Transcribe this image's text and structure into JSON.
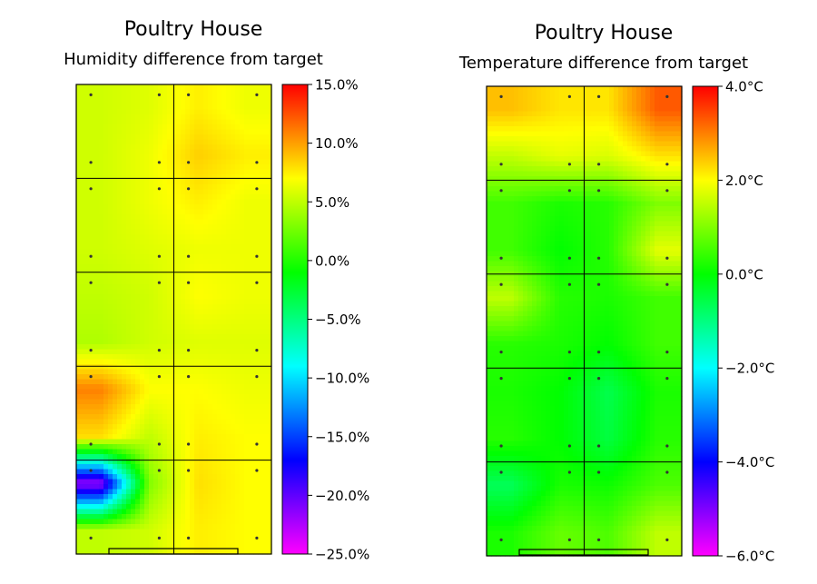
{
  "chart_data": [
    {
      "type": "heatmap",
      "title": "Poultry House",
      "subtitle": "Humidity difference from target",
      "colorbar": {
        "min": -25,
        "max": 15,
        "ticks": [
          15,
          10,
          5,
          0,
          -5,
          -10,
          -15,
          -20,
          -25
        ],
        "tick_labels": [
          "15.0%",
          "10.0%",
          "5.0%",
          "0.0%",
          "−5.0%",
          "−10.0%",
          "−15.0%",
          "−20.0%",
          "−25.0%"
        ]
      },
      "grid": {
        "cols": 4,
        "rows": 10
      },
      "values": [
        [
          5.5,
          6,
          7.5,
          6.5
        ],
        [
          5.5,
          6.5,
          8.5,
          7.5
        ],
        [
          5.5,
          6.5,
          7.5,
          6.5
        ],
        [
          5.5,
          6,
          6.5,
          6.5
        ],
        [
          5,
          5.5,
          7,
          6.5
        ],
        [
          4.5,
          5.5,
          6,
          6
        ],
        [
          11,
          7,
          7,
          6.5
        ],
        [
          8,
          5,
          7.5,
          7
        ],
        [
          -22,
          3,
          8,
          7
        ],
        [
          5,
          5.5,
          7.5,
          7
        ]
      ]
    },
    {
      "type": "heatmap",
      "title": "Poultry House",
      "subtitle": "Temperature difference from target",
      "colorbar": {
        "min": -6,
        "max": 4,
        "ticks": [
          4,
          2,
          0,
          -2,
          -4,
          -6
        ],
        "tick_labels": [
          "4.0°C",
          "2.0°C",
          "0.0°C",
          "−2.0°C",
          "−4.0°C",
          "−6.0°C"
        ]
      },
      "grid": {
        "cols": 4,
        "rows": 10
      },
      "values": [
        [
          2.5,
          2.2,
          2.2,
          3.3
        ],
        [
          1.5,
          1.8,
          1.7,
          2.2
        ],
        [
          0.5,
          0.2,
          0.3,
          1
        ],
        [
          0.5,
          0,
          0.3,
          1.8
        ],
        [
          1.5,
          0.3,
          0.2,
          0.5
        ],
        [
          0.3,
          0.2,
          0,
          0.5
        ],
        [
          0.2,
          0,
          -0.6,
          0.2
        ],
        [
          0.3,
          0,
          -0.5,
          0.3
        ],
        [
          -0.7,
          0.2,
          0.1,
          0.6
        ],
        [
          0.2,
          0.8,
          0.6,
          1.5
        ]
      ]
    }
  ]
}
